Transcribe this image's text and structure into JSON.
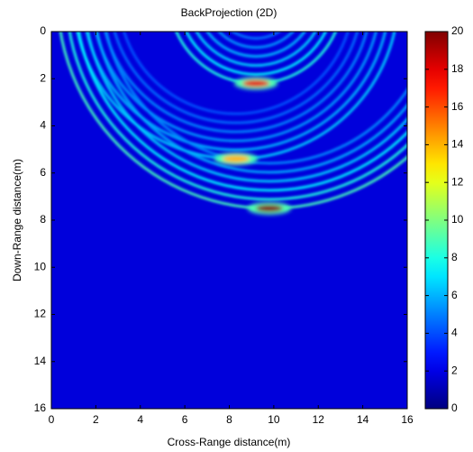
{
  "chart_data": {
    "type": "heatmap",
    "title": "BackProjection (2D)",
    "x_label": "Cross-Range distance(m)",
    "y_label": "Down-Range distance(m)",
    "x": [
      9.2,
      8.3,
      9.8
    ],
    "y": [
      2.2,
      5.4,
      7.5
    ],
    "values": [
      18,
      14,
      20
    ],
    "xlim": [
      0,
      16
    ],
    "xticks": [
      0,
      2,
      4,
      6,
      8,
      10,
      12,
      14,
      16
    ],
    "ylim": [
      0,
      16
    ],
    "yticks": [
      0,
      2,
      4,
      6,
      8,
      10,
      12,
      14,
      16
    ],
    "y_reversed": true,
    "clim": [
      0,
      20
    ],
    "cticks": [
      0,
      2,
      4,
      6,
      8,
      10,
      12,
      14,
      16,
      18,
      20
    ],
    "colormap": "jet"
  }
}
